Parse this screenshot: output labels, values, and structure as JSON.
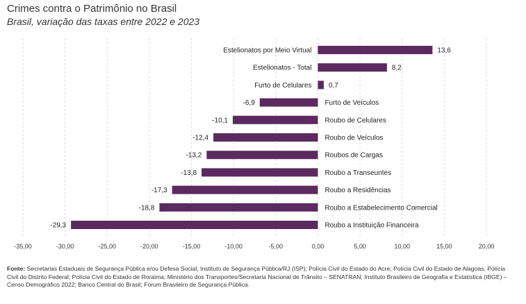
{
  "header": {
    "title": "Crimes contra o Patrimônio no Brasil",
    "subtitle": "Brasil, variação das taxas entre 2022 e 2023"
  },
  "colors": {
    "bar": "#5b2a5e",
    "grid": "#d9d9d9",
    "axis": "#333333"
  },
  "chart_data": {
    "type": "bar",
    "orientation": "horizontal",
    "title": "Crimes contra o Patrimônio no Brasil",
    "subtitle": "Brasil, variação das taxas entre 2022 e 2023",
    "categories": [
      "Estelionatos por Meio Virtual",
      "Estelionatos - Total",
      "Furto de Celulares",
      "Furto de Veículos",
      "Roubo de Celulares",
      "Roubo de Veículos",
      "Roubos de Cargas",
      "Roubo a Transeuntes",
      "Roubo a Residências",
      "Roubo a Estabelecimento Comercial",
      "Roubo a Instituição Financeira"
    ],
    "values": [
      13.6,
      8.2,
      0.7,
      -6.9,
      -10.1,
      -12.4,
      -13.2,
      -13.8,
      -17.3,
      -18.8,
      -29.3
    ],
    "value_labels": [
      "13,6",
      "8,2",
      "0,7",
      "-6,9",
      "-10,1",
      "-12,4",
      "-13,2",
      "-13,8",
      "-17,3",
      "-18,8",
      "-29,3"
    ],
    "xlim": [
      -35,
      20
    ],
    "x_ticks": [
      -35,
      -30,
      -25,
      -20,
      -15,
      -10,
      -5,
      0,
      5,
      10,
      15,
      20
    ],
    "x_tick_labels": [
      "-35,00",
      "-30,00",
      "-25,00",
      "-20,00",
      "-15,00",
      "-10,00",
      "-5,00",
      "0,00",
      "5,00",
      "10,00",
      "15,00",
      "20,00"
    ],
    "grid": true,
    "legend": "none"
  },
  "source": {
    "label": "Fonte:",
    "text": " Secretarias Estaduais de Segurança Pública e/ou Defesa Social; Instituto de Segurança Pública/RJ (ISP); Polícia Civil do Estado do Acre; Polícia Civil do Estado de Alagoas; Polícia Civil do Distrito Federal; Polícia Civil do Estado de Roraima; Ministério dos Transportes/Secretaria Nacional de Trânsito – SENATRAN; Instituto Brasileiro de Geografia e Estatística (IBGE) – Censo Demográfico 2022; Banco Central do Brasil; Fórum Brasileiro de Segurança Pública."
  }
}
